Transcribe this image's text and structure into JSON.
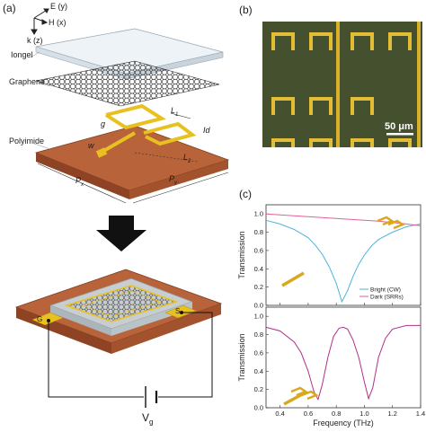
{
  "panels": {
    "a": "(a)",
    "b": "(b)",
    "c": "(c)"
  },
  "axes_triad": {
    "e": "E (y)",
    "h": "H (x)",
    "k": "k (z)"
  },
  "layers": {
    "iongel": "Iongel",
    "graphene": "Graphene",
    "polyimide": "Polyimide"
  },
  "dims": {
    "l1": "L",
    "l1_sub": "1",
    "d": "d",
    "g": "g",
    "w": "w",
    "l2": "L",
    "l2_sub": "2",
    "px": "P",
    "px_sub": "x",
    "py": "P",
    "py_sub": "y"
  },
  "device": {
    "gate_left": "G",
    "gate_right": "S",
    "vg": "V",
    "vg_sub": "g"
  },
  "micrograph": {
    "scale_bar": "50 μm"
  },
  "colors": {
    "bright": "#4fb3d9",
    "dark": "#e0609a",
    "bottom_curve": "#b0308a",
    "gold": "#e8c020",
    "substrate": "#b8633a",
    "micro_bg": "#3f4a2c"
  },
  "chart_data": [
    {
      "type": "line",
      "title": "",
      "xlabel": "",
      "ylabel": "Transmission",
      "xlim": [
        0.3,
        1.4
      ],
      "ylim": [
        0.0,
        1.1
      ],
      "yticks": [
        "0.0",
        "0.2",
        "0.4",
        "0.6",
        "0.8",
        "1.0"
      ],
      "legend": "bottom-right",
      "series": [
        {
          "name": "Bright (CW)",
          "color": "#4fb3d9",
          "x": [
            0.3,
            0.4,
            0.5,
            0.6,
            0.65,
            0.7,
            0.75,
            0.8,
            0.84,
            0.88,
            0.92,
            0.96,
            1.0,
            1.05,
            1.1,
            1.2,
            1.3,
            1.4
          ],
          "y": [
            0.93,
            0.89,
            0.83,
            0.74,
            0.66,
            0.56,
            0.42,
            0.24,
            0.04,
            0.16,
            0.32,
            0.45,
            0.55,
            0.65,
            0.72,
            0.8,
            0.86,
            0.89
          ]
        },
        {
          "name": "Dark (SRRs)",
          "color": "#e0609a",
          "x": [
            0.3,
            0.5,
            0.7,
            0.9,
            1.1,
            1.3,
            1.4
          ],
          "y": [
            1.0,
            0.98,
            0.96,
            0.94,
            0.92,
            0.89,
            0.87
          ]
        }
      ]
    },
    {
      "type": "line",
      "title": "",
      "xlabel": "Frequency (THz)",
      "ylabel": "Transmission",
      "xlim": [
        0.3,
        1.4
      ],
      "ylim": [
        0.0,
        1.1
      ],
      "xticks": [
        "0.4",
        "0.6",
        "0.8",
        "1.0",
        "1.2",
        "1.4"
      ],
      "yticks": [
        "0.0",
        "0.2",
        "0.4",
        "0.6",
        "0.8",
        "1.0"
      ],
      "series": [
        {
          "color": "#b0308a",
          "x": [
            0.3,
            0.4,
            0.5,
            0.55,
            0.6,
            0.64,
            0.67,
            0.7,
            0.74,
            0.78,
            0.82,
            0.85,
            0.88,
            0.92,
            0.96,
            1.0,
            1.03,
            1.06,
            1.1,
            1.15,
            1.2,
            1.3,
            1.4
          ],
          "y": [
            0.88,
            0.84,
            0.72,
            0.6,
            0.4,
            0.18,
            0.09,
            0.25,
            0.55,
            0.78,
            0.87,
            0.88,
            0.86,
            0.74,
            0.55,
            0.28,
            0.1,
            0.22,
            0.55,
            0.76,
            0.86,
            0.9,
            0.9
          ]
        }
      ]
    }
  ]
}
